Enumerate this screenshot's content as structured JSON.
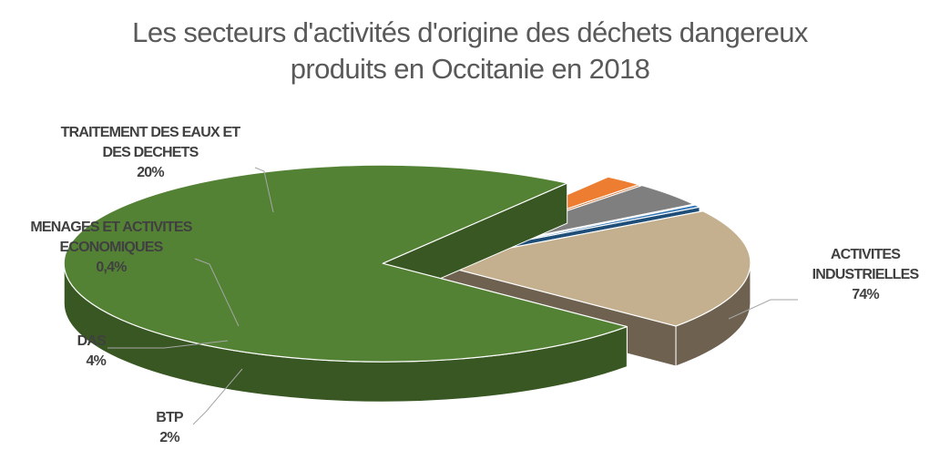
{
  "chart_data": {
    "type": "pie",
    "title": "Les secteurs d'activités d'origine des déchets dangereux produits en Occitanie en 2018",
    "title_lines": [
      "Les secteurs d'activités d'origine des déchets dangereux",
      "produits en Occitanie en 2018"
    ],
    "three_d": true,
    "exploded": true,
    "slices": [
      {
        "label_lines": [
          "ACTIVITES",
          "INDUSTRIELLES"
        ],
        "value": 74,
        "value_label": "74%",
        "color": "#548235",
        "side_color": "#385723"
      },
      {
        "label_lines": [
          "BTP"
        ],
        "value": 2,
        "value_label": "2%",
        "color": "#ED7D31",
        "side_color": "#C55A11"
      },
      {
        "label_lines": [
          "DAS"
        ],
        "value": 4,
        "value_label": "4%",
        "color": "#7F7F7F",
        "side_color": "#595959"
      },
      {
        "label_lines": [
          "MENAGES ET ACTIVITES",
          "ECONOMIQUES"
        ],
        "value": 0.4,
        "value_label": "0,4%",
        "color": "#2E75B6",
        "side_color": "#1F4E79"
      },
      {
        "label_lines": [
          "TRAITEMENT DES EAUX ET",
          "DES DECHETS"
        ],
        "value": 20,
        "value_label": "20%",
        "color": "#C4B08E",
        "side_color": "#6E6150"
      }
    ]
  }
}
